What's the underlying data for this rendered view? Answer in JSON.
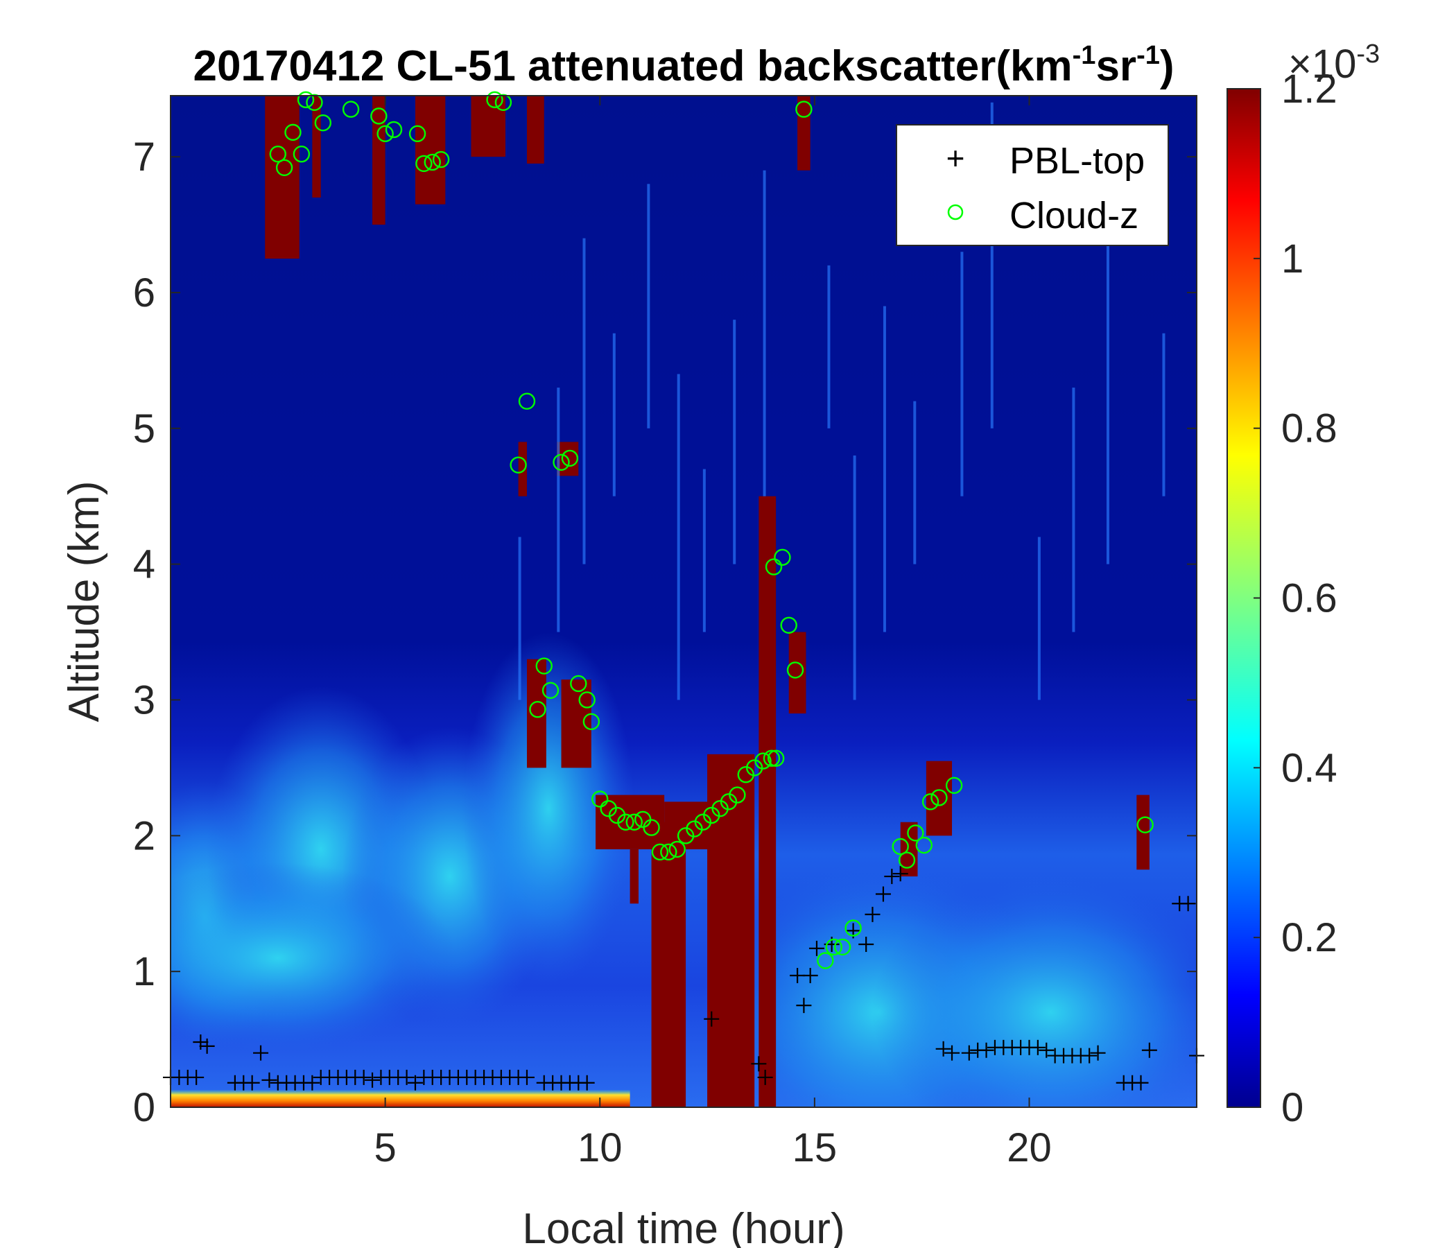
{
  "chart_data": {
    "type": "heatmap",
    "title": "20170412  CL-51 attenuated backscatter(km-1sr-1)",
    "title_parts": {
      "main": "20170412  CL-51 attenuated backscatter(km",
      "sup1": "-1",
      "mid": "sr",
      "sup2": "-1",
      "end": ")"
    },
    "xlabel": "Local time (hour)",
    "ylabel": "Altitude (km)",
    "xlim": [
      0,
      23.9
    ],
    "ylim": [
      0,
      7.45
    ],
    "xticks": [
      "5",
      "10",
      "15",
      "20"
    ],
    "yticks": [
      "0",
      "1",
      "2",
      "3",
      "4",
      "5",
      "6",
      "7"
    ],
    "colorbar": {
      "colormap": "jet",
      "range": [
        0,
        0.0012
      ],
      "scale_label": "×10",
      "scale_exp": "-3",
      "ticks": [
        "0",
        "0.2",
        "0.4",
        "0.6",
        "0.8",
        "1",
        "1.2"
      ]
    },
    "legend": {
      "location": "top-right",
      "entries": [
        "PBL-top",
        "Cloud-z"
      ]
    },
    "series": [
      {
        "name": "PBL-top",
        "marker": "+",
        "color": "#000000",
        "points": [
          [
            0,
            0.22
          ],
          [
            0.2,
            0.22
          ],
          [
            0.4,
            0.22
          ],
          [
            0.6,
            0.22
          ],
          [
            0.7,
            0.48
          ],
          [
            0.85,
            0.45
          ],
          [
            1.5,
            0.18
          ],
          [
            1.7,
            0.18
          ],
          [
            1.9,
            0.18
          ],
          [
            2.1,
            0.4
          ],
          [
            2.3,
            0.2
          ],
          [
            2.5,
            0.18
          ],
          [
            2.7,
            0.18
          ],
          [
            2.9,
            0.18
          ],
          [
            3.1,
            0.18
          ],
          [
            3.3,
            0.18
          ],
          [
            3.5,
            0.22
          ],
          [
            3.7,
            0.22
          ],
          [
            3.9,
            0.22
          ],
          [
            4.1,
            0.22
          ],
          [
            4.3,
            0.22
          ],
          [
            4.5,
            0.22
          ],
          [
            4.7,
            0.2
          ],
          [
            4.9,
            0.22
          ],
          [
            5.1,
            0.22
          ],
          [
            5.3,
            0.22
          ],
          [
            5.5,
            0.22
          ],
          [
            5.7,
            0.18
          ],
          [
            5.9,
            0.22
          ],
          [
            6.1,
            0.22
          ],
          [
            6.3,
            0.22
          ],
          [
            6.5,
            0.22
          ],
          [
            6.7,
            0.22
          ],
          [
            6.9,
            0.22
          ],
          [
            7.1,
            0.22
          ],
          [
            7.3,
            0.22
          ],
          [
            7.5,
            0.22
          ],
          [
            7.7,
            0.22
          ],
          [
            7.9,
            0.22
          ],
          [
            8.1,
            0.22
          ],
          [
            8.3,
            0.22
          ],
          [
            8.7,
            0.18
          ],
          [
            8.9,
            0.18
          ],
          [
            9.1,
            0.18
          ],
          [
            9.3,
            0.18
          ],
          [
            9.5,
            0.18
          ],
          [
            9.7,
            0.18
          ],
          [
            12.6,
            0.65
          ],
          [
            13.7,
            0.32
          ],
          [
            13.85,
            0.22
          ],
          [
            14.6,
            0.97
          ],
          [
            14.75,
            0.75
          ],
          [
            14.9,
            0.97
          ],
          [
            15.05,
            1.17
          ],
          [
            15.4,
            1.2
          ],
          [
            15.9,
            1.3
          ],
          [
            16.2,
            1.2
          ],
          [
            16.35,
            1.42
          ],
          [
            16.6,
            1.57
          ],
          [
            16.8,
            1.7
          ],
          [
            17.0,
            1.72
          ],
          [
            18.0,
            0.43
          ],
          [
            18.2,
            0.4
          ],
          [
            18.6,
            0.4
          ],
          [
            18.8,
            0.42
          ],
          [
            19.0,
            0.42
          ],
          [
            19.2,
            0.44
          ],
          [
            19.4,
            0.44
          ],
          [
            19.6,
            0.44
          ],
          [
            19.8,
            0.44
          ],
          [
            20.0,
            0.44
          ],
          [
            20.2,
            0.44
          ],
          [
            20.4,
            0.42
          ],
          [
            20.6,
            0.38
          ],
          [
            20.8,
            0.38
          ],
          [
            21.0,
            0.38
          ],
          [
            21.2,
            0.38
          ],
          [
            21.4,
            0.38
          ],
          [
            21.6,
            0.4
          ],
          [
            22.2,
            0.18
          ],
          [
            22.4,
            0.18
          ],
          [
            22.6,
            0.18
          ],
          [
            22.8,
            0.42
          ],
          [
            23.5,
            1.5
          ],
          [
            23.7,
            1.5
          ],
          [
            23.9,
            0.38
          ]
        ]
      },
      {
        "name": "Cloud-z",
        "marker": "o",
        "color": "#00ff00",
        "points": [
          [
            2.5,
            7.02
          ],
          [
            2.65,
            6.92
          ],
          [
            2.85,
            7.18
          ],
          [
            3.05,
            7.02
          ],
          [
            3.15,
            7.42
          ],
          [
            3.35,
            7.4
          ],
          [
            3.55,
            7.25
          ],
          [
            4.2,
            7.35
          ],
          [
            4.85,
            7.3
          ],
          [
            5.0,
            7.17
          ],
          [
            5.2,
            7.2
          ],
          [
            5.75,
            7.17
          ],
          [
            5.9,
            6.95
          ],
          [
            6.1,
            6.96
          ],
          [
            6.3,
            6.98
          ],
          [
            7.55,
            7.42
          ],
          [
            7.75,
            7.4
          ],
          [
            8.3,
            5.2
          ],
          [
            8.1,
            4.73
          ],
          [
            9.1,
            4.75
          ],
          [
            9.3,
            4.78
          ],
          [
            8.55,
            2.93
          ],
          [
            8.7,
            3.25
          ],
          [
            8.85,
            3.07
          ],
          [
            9.5,
            3.12
          ],
          [
            9.7,
            3.0
          ],
          [
            9.8,
            2.84
          ],
          [
            10.0,
            2.27
          ],
          [
            10.2,
            2.2
          ],
          [
            10.4,
            2.15
          ],
          [
            10.6,
            2.1
          ],
          [
            10.8,
            2.1
          ],
          [
            11.0,
            2.12
          ],
          [
            11.2,
            2.06
          ],
          [
            11.4,
            1.88
          ],
          [
            11.6,
            1.88
          ],
          [
            11.8,
            1.9
          ],
          [
            12.0,
            2.0
          ],
          [
            12.2,
            2.05
          ],
          [
            12.4,
            2.1
          ],
          [
            12.6,
            2.15
          ],
          [
            12.8,
            2.2
          ],
          [
            13.0,
            2.25
          ],
          [
            13.2,
            2.3
          ],
          [
            13.4,
            2.45
          ],
          [
            13.6,
            2.5
          ],
          [
            13.8,
            2.55
          ],
          [
            14.0,
            2.57
          ],
          [
            14.1,
            2.57
          ],
          [
            14.05,
            3.98
          ],
          [
            14.25,
            4.05
          ],
          [
            14.4,
            3.55
          ],
          [
            14.55,
            3.22
          ],
          [
            14.75,
            7.35
          ],
          [
            15.25,
            1.08
          ],
          [
            15.45,
            1.18
          ],
          [
            15.65,
            1.18
          ],
          [
            15.9,
            1.32
          ],
          [
            17.0,
            1.92
          ],
          [
            17.15,
            1.82
          ],
          [
            17.35,
            2.02
          ],
          [
            17.55,
            1.93
          ],
          [
            17.7,
            2.25
          ],
          [
            17.9,
            2.28
          ],
          [
            18.25,
            2.37
          ],
          [
            22.7,
            2.08
          ]
        ]
      }
    ],
    "colormap_note": "attenuated backscatter field; saturated dark red where clouds/aerosol strongly backscatter"
  }
}
